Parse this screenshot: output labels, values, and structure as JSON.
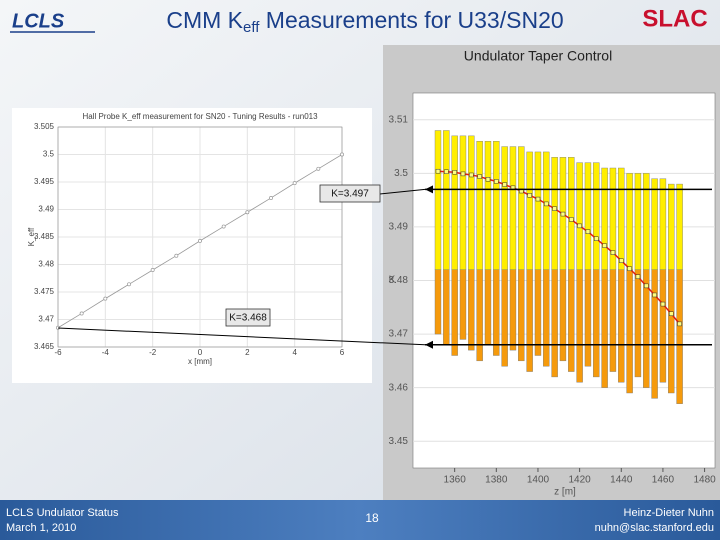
{
  "header": {
    "title_main": "CMM K",
    "title_sub": "eff",
    "title_rest": " Measurements for U33/SN20",
    "logo_left": "LCLS",
    "logo_right": "SLAC"
  },
  "left_chart": {
    "type": "line",
    "title": "Hall Probe K_eff measurement for SN20 - Tuning Results - run013",
    "x_label": "x [mm]",
    "y_label": "K_eff",
    "x": [
      -6,
      -5,
      -4,
      -3,
      -2,
      -1,
      0,
      1,
      2,
      3,
      4,
      5,
      6
    ],
    "values": [
      3.4685,
      3.4711,
      3.4738,
      3.4764,
      3.479,
      3.4816,
      3.4843,
      3.4869,
      3.4895,
      3.4921,
      3.4948,
      3.4974,
      3.5
    ],
    "color": "#999999",
    "xlim": [
      -6,
      6
    ],
    "xticks": [
      -6,
      -4,
      -2,
      0,
      2,
      4,
      6
    ],
    "ylim": [
      3.465,
      3.505
    ],
    "yticks": [
      3.465,
      3.47,
      3.475,
      3.48,
      3.485,
      3.49,
      3.495,
      3.5,
      3.505
    ],
    "grid": true
  },
  "annotations": [
    {
      "label": "K=3.497",
      "value": 3.497
    },
    {
      "label": "K=3.468",
      "value": 3.468
    }
  ],
  "right_chart": {
    "type": "bar",
    "title": "Undulator Taper Control",
    "x_label": "z [m]",
    "y_label": "K",
    "x": [
      1352,
      1356,
      1360,
      1364,
      1368,
      1372,
      1376,
      1380,
      1384,
      1388,
      1392,
      1396,
      1400,
      1404,
      1408,
      1412,
      1416,
      1420,
      1424,
      1428,
      1432,
      1436,
      1440,
      1444,
      1448,
      1452,
      1456,
      1460,
      1464,
      1468
    ],
    "upper": [
      3.508,
      3.508,
      3.507,
      3.507,
      3.507,
      3.506,
      3.506,
      3.506,
      3.505,
      3.505,
      3.505,
      3.504,
      3.504,
      3.504,
      3.503,
      3.503,
      3.503,
      3.502,
      3.502,
      3.502,
      3.501,
      3.501,
      3.501,
      3.5,
      3.5,
      3.5,
      3.499,
      3.499,
      3.498,
      3.498
    ],
    "split": 3.482,
    "lower": [
      3.47,
      3.468,
      3.466,
      3.469,
      3.467,
      3.465,
      3.468,
      3.466,
      3.464,
      3.467,
      3.465,
      3.463,
      3.466,
      3.464,
      3.462,
      3.465,
      3.463,
      3.461,
      3.464,
      3.462,
      3.46,
      3.463,
      3.461,
      3.459,
      3.462,
      3.46,
      3.458,
      3.461,
      3.459,
      3.457
    ],
    "k_values": [
      3.5004,
      3.5003,
      3.5002,
      3.4999,
      3.4997,
      3.4994,
      3.4989,
      3.4985,
      3.4979,
      3.4973,
      3.4967,
      3.4959,
      3.4952,
      3.4943,
      3.4934,
      3.4924,
      3.4914,
      3.4902,
      3.4891,
      3.4878,
      3.4865,
      3.4852,
      3.4837,
      3.4822,
      3.4807,
      3.479,
      3.4773,
      3.4756,
      3.4738,
      3.4719
    ],
    "upper_color": "#ffee00",
    "lower_color": "#f59a0c",
    "line_color": "#e02010",
    "xlim": [
      1340,
      1485
    ],
    "xticks": [
      1360,
      1380,
      1400,
      1420,
      1440,
      1460,
      1480
    ],
    "ylim": [
      3.445,
      3.515
    ],
    "yticks": [
      3.45,
      3.46,
      3.47,
      3.48,
      3.49,
      3.5,
      3.51
    ]
  },
  "footer": {
    "line1": "LCLS Undulator Status",
    "line2": "March 1, 2010",
    "page": "18",
    "author": "Heinz-Dieter Nuhn",
    "email": "nuhn@slac.stanford.edu"
  }
}
